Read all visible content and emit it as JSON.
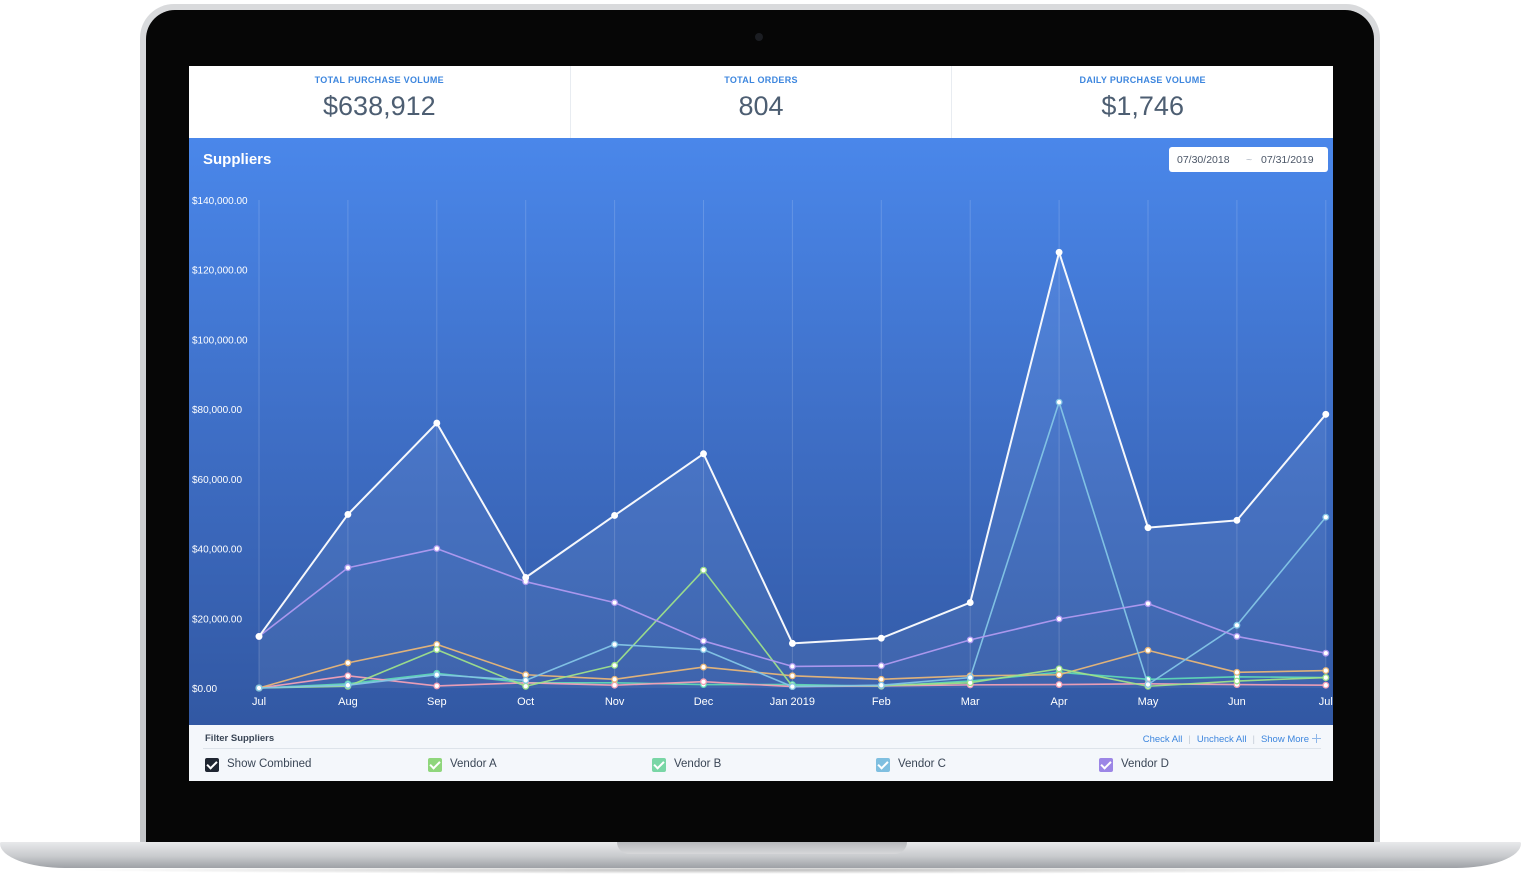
{
  "stats": [
    {
      "label": "TOTAL PURCHASE VOLUME",
      "value": "$638,912"
    },
    {
      "label": "TOTAL ORDERS",
      "value": "804"
    },
    {
      "label": "DAILY PURCHASE VOLUME",
      "value": "$1,746"
    }
  ],
  "panel": {
    "title": "Suppliers",
    "date_from": "07/30/2018",
    "date_separator": "~",
    "date_to": "07/31/2019"
  },
  "chart_data": {
    "type": "line",
    "title": "",
    "xlabel": "",
    "ylabel": "",
    "ylim": [
      0,
      140000
    ],
    "y_ticks": [
      "$0.00",
      "$20,000.00",
      "$40,000.00",
      "$60,000.00",
      "$80,000.00",
      "$100,000.00",
      "$120,000.00",
      "$140,000.00"
    ],
    "categories": [
      "Jul",
      "Aug",
      "Sep",
      "Oct",
      "Nov",
      "Dec",
      "Jan 2019",
      "Feb",
      "Mar",
      "Apr",
      "May",
      "Jun",
      "Jul"
    ],
    "grid": "vertical",
    "series": [
      {
        "color": "#ffffff",
        "values": [
          14800,
          49800,
          76000,
          31700,
          49500,
          67200,
          12800,
          14300,
          24500,
          125000,
          46000,
          48100,
          78500
        ]
      },
      {
        "color": "#b09af0",
        "values": [
          14800,
          34500,
          40000,
          30500,
          24500,
          13500,
          6200,
          6400,
          13800,
          19800,
          24200,
          14800,
          10000
        ]
      },
      {
        "color": "#84c5e6",
        "values": [
          0,
          800,
          3800,
          2200,
          12500,
          11000,
          400,
          800,
          3000,
          82000,
          1000,
          18000,
          49000
        ]
      },
      {
        "color": "#9ee08a",
        "values": [
          0,
          500,
          11000,
          500,
          6500,
          33800,
          500,
          700,
          1500,
          5500,
          500,
          2000,
          3000
        ]
      },
      {
        "color": "#e8b678",
        "values": [
          0,
          7200,
          12500,
          3800,
          2500,
          6000,
          3500,
          2500,
          3500,
          3800,
          10800,
          4500,
          5000
        ]
      },
      {
        "color": "#f2a0b6",
        "values": [
          0,
          3500,
          600,
          1500,
          800,
          1800,
          400,
          600,
          900,
          1000,
          1200,
          1000,
          800
        ]
      },
      {
        "color": "#5fd8b5",
        "values": [
          0,
          1200,
          4200,
          1500,
          1500,
          1000,
          1000,
          500,
          2000,
          4500,
          2500,
          3200,
          3000
        ]
      }
    ]
  },
  "filter": {
    "title": "Filter Suppliers",
    "check_all": "Check All",
    "uncheck_all": "Uncheck All",
    "show_more": "Show More",
    "items": [
      {
        "label": "Show Combined",
        "color": "#1f2631"
      },
      {
        "label": "Vendor A",
        "color": "#8fd67c"
      },
      {
        "label": "Vendor B",
        "color": "#79d6a6"
      },
      {
        "label": "Vendor C",
        "color": "#7fbfe0"
      },
      {
        "label": "Vendor D",
        "color": "#9c86e6"
      }
    ]
  }
}
